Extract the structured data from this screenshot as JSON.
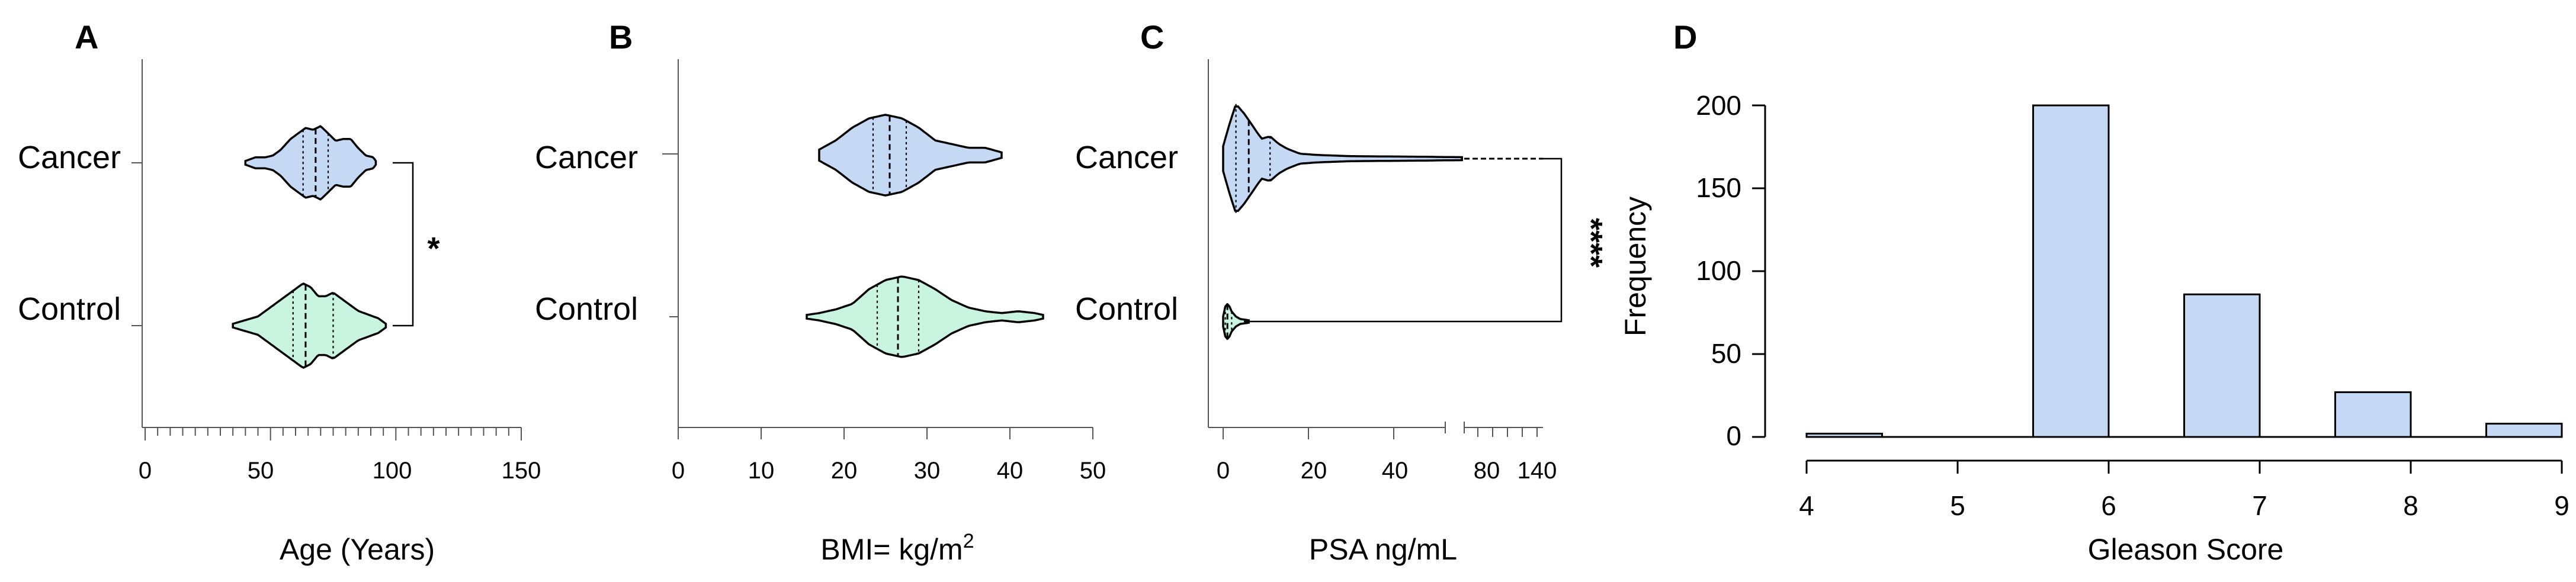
{
  "colors": {
    "cancer_fill": "#c6d9f4",
    "control_fill": "#c8f4e0",
    "bar_fill": "#c6d9f4",
    "outline": "#000000"
  },
  "chart_data": [
    {
      "panel": "A",
      "type": "violin",
      "categories": [
        "Cancer",
        "Control"
      ],
      "xlabel": "Age (Years)",
      "xlim": [
        0,
        150
      ],
      "xticks": [
        "0",
        "50",
        "100",
        "150"
      ],
      "series": [
        {
          "name": "Cancer",
          "min": 40,
          "q1": 63,
          "median": 68,
          "q3": 73,
          "max": 92,
          "profile": [
            [
              40,
              1
            ],
            [
              44,
              3
            ],
            [
              48,
              3
            ],
            [
              51,
              4
            ],
            [
              54,
              7
            ],
            [
              58,
              13
            ],
            [
              61,
              16
            ],
            [
              64,
              19
            ],
            [
              67,
              18
            ],
            [
              70,
              20
            ],
            [
              73,
              16
            ],
            [
              76,
              12
            ],
            [
              79,
              13
            ],
            [
              82,
              13
            ],
            [
              85,
              8
            ],
            [
              88,
              4
            ],
            [
              91,
              3
            ],
            [
              92,
              1
            ]
          ]
        },
        {
          "name": "Control",
          "min": 35,
          "q1": 59,
          "median": 64,
          "q3": 75,
          "max": 96,
          "profile": [
            [
              35,
              1
            ],
            [
              40,
              3
            ],
            [
              45,
              5
            ],
            [
              50,
              10
            ],
            [
              55,
              15
            ],
            [
              60,
              20
            ],
            [
              63,
              23
            ],
            [
              66,
              21
            ],
            [
              69,
              16
            ],
            [
              72,
              16
            ],
            [
              75,
              18
            ],
            [
              78,
              15
            ],
            [
              81,
              12
            ],
            [
              85,
              8
            ],
            [
              89,
              6
            ],
            [
              93,
              4
            ],
            [
              96,
              1
            ]
          ]
        }
      ],
      "significance": "*"
    },
    {
      "panel": "B",
      "type": "violin",
      "categories": [
        "Cancer",
        "Control"
      ],
      "xlabel_main": "BMI= kg/m",
      "xlabel_sup": "2",
      "xlim": [
        0,
        50
      ],
      "xticks": [
        "0",
        "10",
        "20",
        "30",
        "40",
        "50"
      ],
      "series": [
        {
          "name": "Cancer",
          "min": 17,
          "q1": 23.5,
          "median": 25.5,
          "q3": 27.5,
          "max": 39,
          "profile": [
            [
              17,
              3
            ],
            [
              19,
              8
            ],
            [
              21,
              15
            ],
            [
              23,
              20
            ],
            [
              25,
              22
            ],
            [
              27,
              20
            ],
            [
              29,
              15
            ],
            [
              31,
              8
            ],
            [
              33,
              6
            ],
            [
              35,
              4
            ],
            [
              37,
              4
            ],
            [
              39,
              1.5
            ]
          ]
        },
        {
          "name": "Control",
          "min": 15.5,
          "q1": 24,
          "median": 26.5,
          "q3": 29,
          "max": 44,
          "profile": [
            [
              15.5,
              1
            ],
            [
              17,
              2
            ],
            [
              19,
              4
            ],
            [
              21,
              7
            ],
            [
              23,
              15
            ],
            [
              25,
              20
            ],
            [
              27,
              22
            ],
            [
              29,
              20
            ],
            [
              31,
              15
            ],
            [
              33,
              9
            ],
            [
              35,
              5
            ],
            [
              37,
              3
            ],
            [
              39,
              2
            ],
            [
              41,
              3
            ],
            [
              43,
              2
            ],
            [
              44,
              1
            ]
          ]
        }
      ]
    },
    {
      "panel": "C",
      "type": "violin",
      "categories": [
        "Cancer",
        "Control"
      ],
      "xlabel": "PSA ng/mL",
      "xlim": [
        -2,
        58
      ],
      "xlim_break": [
        60,
        150
      ],
      "xticks": [
        "0",
        "20",
        "40"
      ],
      "xticks_break": [
        "80",
        "140"
      ],
      "series": [
        {
          "name": "Cancer",
          "min": 0,
          "q1": 3,
          "median": 6,
          "q3": 11,
          "max": 140,
          "profile": [
            [
              0,
              5
            ],
            [
              1.5,
              14
            ],
            [
              3,
              22
            ],
            [
              5,
              18
            ],
            [
              7,
              13
            ],
            [
              9,
              8
            ],
            [
              11,
              9
            ],
            [
              13,
              6
            ],
            [
              15,
              4
            ],
            [
              18,
              2
            ],
            [
              22,
              1.5
            ],
            [
              30,
              1
            ],
            [
              45,
              0.8
            ],
            [
              56,
              0.6
            ]
          ]
        },
        {
          "name": "Control",
          "min": 0,
          "q1": 0.5,
          "median": 1,
          "q3": 2,
          "max": 6,
          "profile": [
            [
              0,
              2
            ],
            [
              0.5,
              6
            ],
            [
              1,
              7
            ],
            [
              1.5,
              6
            ],
            [
              2,
              4
            ],
            [
              3,
              2
            ],
            [
              4,
              1
            ],
            [
              6,
              0.5
            ]
          ]
        }
      ],
      "significance": "****"
    },
    {
      "panel": "D",
      "type": "bar",
      "title": "",
      "xlabel": "Gleason Score",
      "ylabel": "Frequency",
      "xlim": [
        4,
        9
      ],
      "ylim": [
        0,
        200
      ],
      "xticks": [
        "4",
        "5",
        "6",
        "7",
        "8",
        "9"
      ],
      "yticks": [
        "0",
        "50",
        "100",
        "150",
        "200"
      ],
      "bins": [
        {
          "from": 4.0,
          "to": 4.5,
          "value": 2
        },
        {
          "from": 4.5,
          "to": 5.0,
          "value": 0
        },
        {
          "from": 5.0,
          "to": 5.5,
          "value": 0
        },
        {
          "from": 5.5,
          "to": 6.0,
          "value": 200
        },
        {
          "from": 6.0,
          "to": 6.5,
          "value": 0
        },
        {
          "from": 6.5,
          "to": 7.0,
          "value": 86
        },
        {
          "from": 7.0,
          "to": 7.5,
          "value": 0
        },
        {
          "from": 7.5,
          "to": 8.0,
          "value": 27
        },
        {
          "from": 8.0,
          "to": 8.5,
          "value": 0
        },
        {
          "from": 8.5,
          "to": 9.0,
          "value": 8
        }
      ]
    }
  ]
}
